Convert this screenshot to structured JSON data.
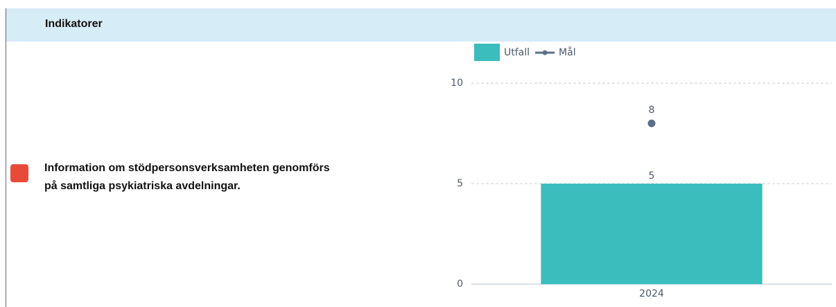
{
  "header": {
    "title": "Indikatorer"
  },
  "indicator": {
    "lines": [
      "Information om stödpersonsverksamheten genomförs",
      "på samtliga psykiatriska avdelningar."
    ]
  },
  "chart_data": {
    "type": "bar",
    "categories": [
      "2024"
    ],
    "series": [
      {
        "name": "Utfall",
        "type": "bar",
        "color": "#3bbdbd",
        "values": [
          5
        ]
      },
      {
        "name": "Mål",
        "type": "line",
        "color": "#5a7088",
        "values": [
          8
        ]
      }
    ],
    "ylim": [
      0,
      10
    ],
    "yticks": [
      0,
      5,
      10
    ],
    "grid": true
  }
}
